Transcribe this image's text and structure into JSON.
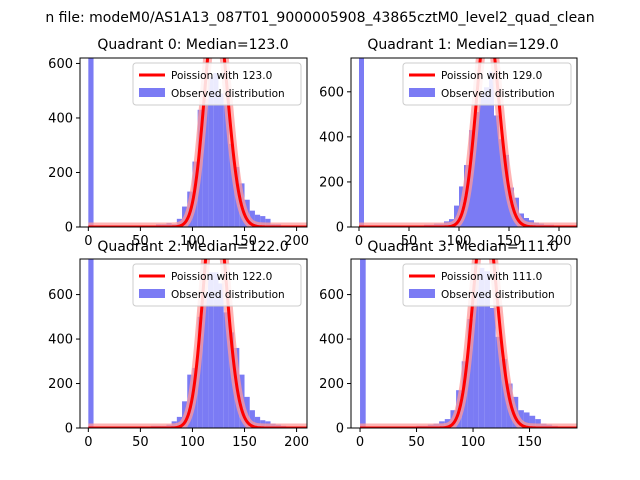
{
  "figure": {
    "suptitle": "n file: modeM0/AS1A13_087T01_9000005908_43865cztM0_level2_quad_clean"
  },
  "colors": {
    "histogram": "#7b7bf4",
    "poisson_line": "#ff0000",
    "poisson_glow": "#ff9a9a"
  },
  "chart_data": [
    {
      "type": "bar",
      "title": "Quadrant 0: Median=123.0",
      "median": 123.0,
      "xlim": [
        -8,
        210
      ],
      "ylim": [
        0,
        620
      ],
      "xticks": [
        0,
        50,
        100,
        150,
        200
      ],
      "yticks": [
        0,
        200,
        400,
        600
      ],
      "legend": [
        "Poission with 123.0",
        "Observed distribution"
      ],
      "legend_position": "upper right",
      "bin_width": 5,
      "bin_starts": [
        0,
        55,
        60,
        65,
        70,
        75,
        80,
        85,
        90,
        95,
        100,
        105,
        110,
        115,
        120,
        125,
        130,
        135,
        140,
        145,
        150,
        155,
        160,
        165,
        170,
        175,
        180,
        185,
        190,
        195,
        200
      ],
      "counts": [
        1900,
        0,
        0,
        10,
        10,
        15,
        10,
        30,
        75,
        130,
        240,
        430,
        470,
        550,
        565,
        490,
        450,
        305,
        220,
        160,
        100,
        60,
        45,
        40,
        30,
        10,
        10,
        5,
        5,
        5,
        0
      ]
    },
    {
      "type": "bar",
      "title": "Quadrant 1: Median=129.0",
      "median": 129.0,
      "xlim": [
        -8,
        218
      ],
      "ylim": [
        0,
        750
      ],
      "xticks": [
        0,
        50,
        100,
        150,
        200
      ],
      "yticks": [
        0,
        200,
        400,
        600
      ],
      "legend": [
        "Poission with 129.0",
        "Observed distribution"
      ],
      "legend_position": "upper right",
      "bin_width": 5,
      "bin_starts": [
        0,
        60,
        65,
        70,
        75,
        80,
        85,
        90,
        95,
        100,
        105,
        110,
        115,
        120,
        125,
        130,
        135,
        140,
        145,
        150,
        155,
        160,
        165,
        170,
        175,
        180,
        185,
        190,
        195,
        200,
        205
      ],
      "counts": [
        1900,
        0,
        10,
        10,
        15,
        15,
        25,
        35,
        95,
        180,
        275,
        430,
        510,
        595,
        620,
        690,
        495,
        390,
        320,
        175,
        130,
        60,
        40,
        30,
        20,
        15,
        10,
        10,
        5,
        5,
        0
      ]
    },
    {
      "type": "bar",
      "title": "Quadrant 2: Median=122.0",
      "median": 122.0,
      "xlim": [
        -8,
        210
      ],
      "ylim": [
        0,
        760
      ],
      "xticks": [
        0,
        50,
        100,
        150,
        200
      ],
      "yticks": [
        0,
        200,
        400,
        600
      ],
      "legend": [
        "Poission with 122.0",
        "Observed distribution"
      ],
      "legend_position": "upper right",
      "bin_width": 5,
      "bin_starts": [
        0,
        60,
        65,
        70,
        75,
        80,
        85,
        90,
        95,
        100,
        105,
        110,
        115,
        120,
        125,
        130,
        135,
        140,
        145,
        150,
        155,
        160,
        165,
        170,
        175,
        180,
        185,
        190,
        195,
        200
      ],
      "counts": [
        1900,
        10,
        10,
        10,
        15,
        30,
        50,
        120,
        240,
        270,
        500,
        605,
        700,
        700,
        650,
        520,
        430,
        360,
        240,
        140,
        80,
        50,
        35,
        30,
        20,
        15,
        10,
        5,
        5,
        0
      ]
    },
    {
      "type": "bar",
      "title": "Quadrant 3: Median=111.0",
      "median": 111.0,
      "xlim": [
        -8,
        192
      ],
      "ylim": [
        0,
        760
      ],
      "xticks": [
        0,
        50,
        100,
        150
      ],
      "yticks": [
        0,
        200,
        400,
        600
      ],
      "legend": [
        "Poission with 111.0",
        "Observed distribution"
      ],
      "legend_position": "upper right",
      "bin_width": 5,
      "bin_starts": [
        0,
        50,
        55,
        60,
        65,
        70,
        75,
        80,
        85,
        90,
        95,
        100,
        105,
        110,
        115,
        120,
        125,
        130,
        135,
        140,
        145,
        150,
        155,
        160,
        165,
        170,
        175,
        180
      ],
      "counts": [
        1900,
        10,
        10,
        15,
        20,
        30,
        40,
        80,
        170,
        300,
        490,
        690,
        720,
        705,
        540,
        410,
        310,
        200,
        140,
        80,
        70,
        55,
        40,
        20,
        15,
        10,
        5,
        0
      ]
    }
  ]
}
